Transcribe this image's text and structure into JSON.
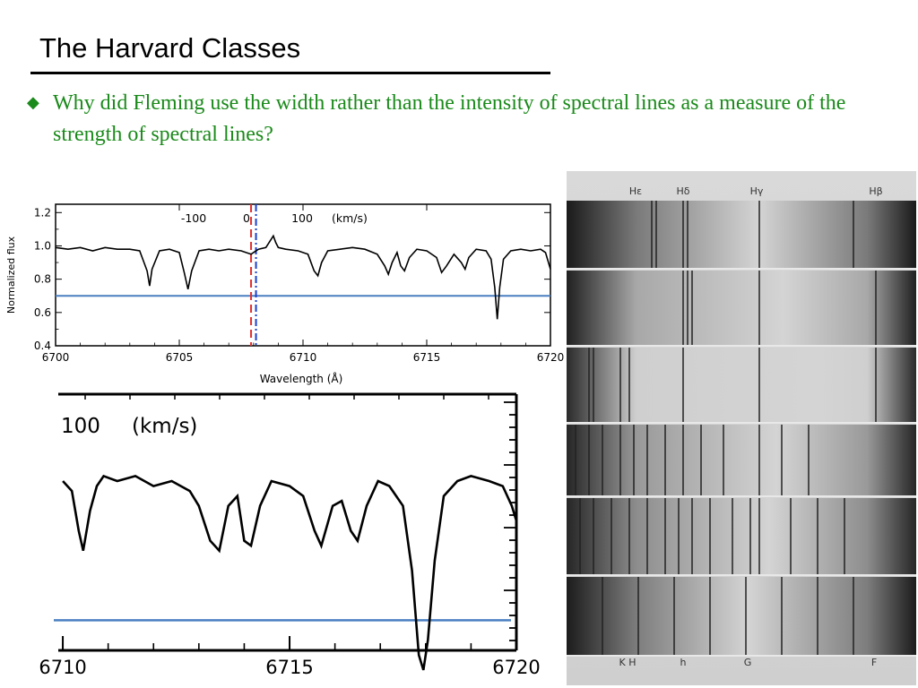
{
  "slide": {
    "title": "The Harvard Classes",
    "bullet": "Why did Fleming use the width rather than the intensity of spectral lines as a measure of the strength of spectral lines?"
  },
  "colors": {
    "bullet_green": "#1a8a1a",
    "threshold_blue": "#4a7fc1",
    "rest_red": "#e03030",
    "shift_blue": "#1a3fd0"
  },
  "chart_data": [
    {
      "type": "line",
      "xlabel": "Wavelength (Å)",
      "ylabel": "Normalized flux",
      "xlim": [
        6700,
        6720
      ],
      "ylim": [
        0.4,
        1.25
      ],
      "x_ticks": [
        "6700",
        "6705",
        "6710",
        "6715",
        "6720"
      ],
      "y_ticks": [
        "0.4",
        "0.6",
        "0.8",
        "1.0",
        "1.2"
      ],
      "top_axis_ticks": [
        "-100",
        "0",
        "100"
      ],
      "top_axis_unit": "(km/s)",
      "threshold_y": 0.7,
      "rest_line_x": 6707.9,
      "shifted_line_x": 6708.1,
      "series": [
        {
          "x": [
            6700,
            6700.5,
            6701,
            6701.5,
            6702,
            6702.5,
            6703,
            6703.4,
            6703.7,
            6703.8,
            6703.9,
            6704.2,
            6704.6,
            6705.0,
            6705.2,
            6705.35,
            6705.5,
            6705.8,
            6706.2,
            6706.6,
            6707.0,
            6707.5,
            6707.9,
            6708.2,
            6708.5,
            6708.8,
            6708.9,
            6709.0,
            6709.3,
            6709.8,
            6710.2,
            6710.45,
            6710.6,
            6710.75,
            6711.0,
            6711.5,
            6712.0,
            6712.5,
            6713.0,
            6713.3,
            6713.45,
            6713.6,
            6713.8,
            6713.95,
            6714.1,
            6714.3,
            6714.6,
            6715.0,
            6715.4,
            6715.6,
            6715.8,
            6716.1,
            6716.4,
            6716.55,
            6716.7,
            6717.0,
            6717.4,
            6717.6,
            6717.75,
            6717.85,
            6717.95,
            6718.1,
            6718.4,
            6718.8,
            6719.2,
            6719.6,
            6719.8,
            6720
          ],
          "y": [
            0.99,
            0.98,
            0.99,
            0.97,
            0.99,
            0.98,
            0.98,
            0.97,
            0.85,
            0.76,
            0.86,
            0.97,
            0.98,
            0.96,
            0.84,
            0.74,
            0.85,
            0.97,
            0.98,
            0.97,
            0.98,
            0.97,
            0.95,
            0.98,
            0.99,
            1.06,
            1.02,
            0.99,
            0.98,
            0.97,
            0.95,
            0.85,
            0.82,
            0.9,
            0.97,
            0.98,
            0.99,
            0.98,
            0.95,
            0.88,
            0.83,
            0.9,
            0.96,
            0.88,
            0.85,
            0.93,
            0.98,
            0.97,
            0.93,
            0.84,
            0.88,
            0.95,
            0.9,
            0.86,
            0.93,
            0.98,
            0.97,
            0.92,
            0.75,
            0.56,
            0.75,
            0.92,
            0.97,
            0.98,
            0.97,
            0.98,
            0.96,
            0.86
          ]
        }
      ]
    },
    {
      "type": "line",
      "xlim": [
        6709.9,
        6720
      ],
      "x_ticks": [
        "6710",
        "6715",
        "6720"
      ],
      "top_axis_ticks": [
        "100"
      ],
      "top_axis_unit": "(km/s)",
      "threshold_y": 0.7,
      "series": [
        {
          "x": [
            6710,
            6710.2,
            6710.35,
            6710.45,
            6710.6,
            6710.75,
            6710.9,
            6711.2,
            6711.6,
            6712.0,
            6712.4,
            6712.8,
            6713.0,
            6713.25,
            6713.45,
            6713.65,
            6713.85,
            6714.0,
            6714.15,
            6714.35,
            6714.6,
            6715.0,
            6715.3,
            6715.55,
            6715.7,
            6715.95,
            6716.15,
            6716.35,
            6716.5,
            6716.7,
            6716.95,
            6717.2,
            6717.5,
            6717.7,
            6717.85,
            6717.95,
            6718.05,
            6718.2,
            6718.4,
            6718.7,
            6719.0,
            6719.4,
            6719.7,
            6719.9,
            6720
          ],
          "y": [
            0.98,
            0.96,
            0.88,
            0.84,
            0.92,
            0.97,
            0.99,
            0.98,
            0.99,
            0.97,
            0.98,
            0.96,
            0.93,
            0.86,
            0.84,
            0.93,
            0.95,
            0.86,
            0.85,
            0.93,
            0.98,
            0.97,
            0.95,
            0.88,
            0.85,
            0.93,
            0.94,
            0.88,
            0.86,
            0.93,
            0.98,
            0.97,
            0.93,
            0.8,
            0.63,
            0.6,
            0.66,
            0.82,
            0.95,
            0.98,
            0.99,
            0.98,
            0.97,
            0.93,
            0.9
          ]
        }
      ]
    }
  ],
  "plate": {
    "top_labels": [
      "Hε",
      "Hδ",
      "Hγ",
      "Hβ"
    ],
    "bottom_labels": [
      "K H",
      "h",
      "G",
      "F"
    ]
  }
}
